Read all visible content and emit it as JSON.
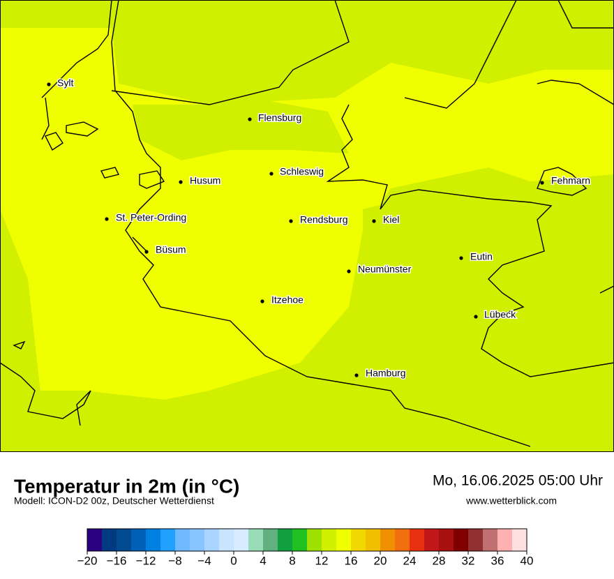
{
  "map": {
    "cities": [
      "Sylt",
      "Flensburg",
      "Schleswig",
      "Husum",
      "St. Peter-Ording",
      "Rendsburg",
      "Kiel",
      "Büsum",
      "Neumünster",
      "Eutin",
      "Itzehoe",
      "Lübeck",
      "Hamburg",
      "Fehmarn"
    ]
  },
  "footer": {
    "title": "Temperatur in 2m (in °C)",
    "model": "Modell: ICON-D2 00z, Deutscher Wetterdienst",
    "date": "Mo, 16.06.2025 05:00 Uhr",
    "website": "www.wetterblick.com"
  },
  "legend": {
    "range": [
      -20,
      40
    ],
    "colors": [
      "#2a0080",
      "#003a80",
      "#004a90",
      "#0060b8",
      "#0080e0",
      "#20a0ff",
      "#70b8ff",
      "#88c4ff",
      "#a8d4ff",
      "#c8e4ff",
      "#d8ecff",
      "#98dcb8",
      "#60b080",
      "#10a040",
      "#20c020",
      "#a0e000",
      "#d0f000",
      "#f0ff00",
      "#f0d800",
      "#f0c000",
      "#f09000",
      "#f07010",
      "#e83010",
      "#c01818",
      "#a81010",
      "#800000",
      "#903030",
      "#c07070",
      "#ffb0b0",
      "#ffe0e0"
    ],
    "ticks": [
      {
        "value": -20,
        "label": "−20"
      },
      {
        "value": -16,
        "label": "−16"
      },
      {
        "value": -12,
        "label": "−12"
      },
      {
        "value": -8,
        "label": "−8"
      },
      {
        "value": -4,
        "label": "−4"
      },
      0,
      4,
      8,
      12,
      16,
      20,
      24,
      28,
      32,
      36,
      40
    ]
  }
}
